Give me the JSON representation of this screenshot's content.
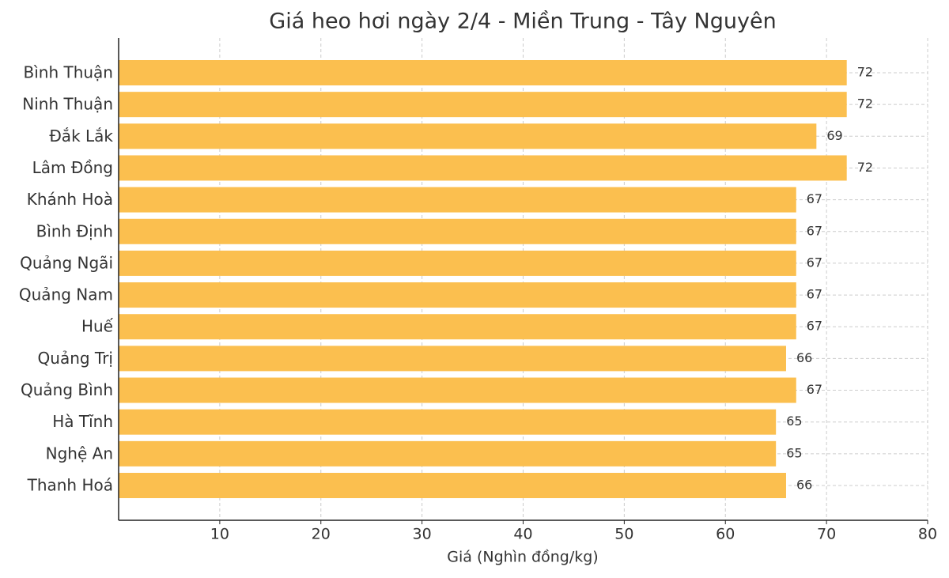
{
  "chart_data": {
    "type": "bar",
    "orientation": "horizontal",
    "title": "Giá heo hơi ngày 2/4 - Miền Trung - Tây Nguyên",
    "x_label": "Giá (Nghìn đồng/kg)",
    "categories": [
      "Bình Thuận",
      "Ninh Thuận",
      "Đắk Lắk",
      "Lâm Đồng",
      "Khánh Hoà",
      "Bình Định",
      "Quảng Ngãi",
      "Quảng Nam",
      "Huế",
      "Quảng Trị",
      "Quảng Bình",
      "Hà Tĩnh",
      "Nghệ An",
      "Thanh Hoá"
    ],
    "values": [
      72,
      72,
      69,
      72,
      67,
      67,
      67,
      67,
      67,
      66,
      67,
      65,
      65,
      66
    ],
    "color": "#fbbf4f",
    "xlim": [
      0,
      80
    ],
    "xticks": [
      10,
      20,
      30,
      40,
      50,
      60,
      70,
      80
    ],
    "grid": true
  }
}
